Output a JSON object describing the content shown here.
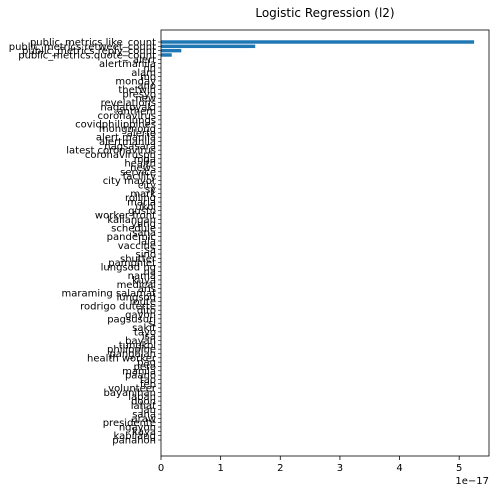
{
  "chart_data": {
    "type": "bar",
    "orientation": "horizontal",
    "title": "Logistic Regression (l2)",
    "xlabel": "",
    "ylabel": "",
    "x_scale_label": "1e−17",
    "xlim": [
      0,
      5.5
    ],
    "x_ticks": [
      0,
      1,
      2,
      3,
      4,
      5
    ],
    "x_tick_labels": [
      "0",
      "1",
      "2",
      "3",
      "4",
      "5"
    ],
    "grid": false,
    "bar_color": "#1f77b4",
    "categories": [
      "public_metrics.like_count",
      "public_metrics.retweet_count",
      "public_metrics.reply_count",
      "public_metrics.quote_count",
      "alert",
      "alertmanila",
      "nh",
      "alam",
      "mo",
      "monday",
      "ano",
      "thetwin",
      "presyo",
      "new",
      "revelations",
      "nagatoyaki",
      "anthem",
      "coronavirus",
      "lungs",
      "covidphilippines",
      "mongmong",
      "alerto",
      "alert manila",
      "alertmanila",
      "nagsasara",
      "latest coronavirus",
      "coronavirusph",
      "mga",
      "health",
      "news",
      "service",
      "facility",
      "city mayor",
      "city",
      "sy",
      "mark",
      "rolling",
      "maria",
      "ukol",
      "gusto",
      "worker front",
      "kailangan",
      "yung",
      "schedule",
      "sana",
      "pandemic",
      "lala",
      "vaccine",
      "sa",
      "sino",
      "shutter",
      "pamphlet",
      "lungsod ng",
      "na",
      "nama",
      "kuya",
      "medical",
      "aris",
      "maraming salamat",
      "lungsod",
      "route",
      "rodrigo duterte",
      "dito",
      "gayon",
      "pagsusuri",
      "si",
      "sakit",
      "tayo",
      "isa",
      "bayan",
      "tungkol",
      "philippine",
      "pangalan",
      "health worker",
      "pag",
      "pero",
      "manila",
      "paano",
      "tao",
      "feb",
      "volunteer",
      "bayanihan",
      "laban",
      "doon",
      "lahat",
      "jan",
      "sana",
      "araw",
      "presidente",
      "ngayon",
      "kaya",
      "kabilang",
      "panahon"
    ],
    "values": [
      5.25,
      1.58,
      0.34,
      0.18,
      0,
      0,
      0,
      0,
      0,
      0,
      0,
      0,
      0,
      0,
      0,
      0,
      0,
      0,
      0,
      0,
      0,
      0,
      0,
      0,
      0,
      0,
      0,
      0,
      0,
      0,
      0,
      0,
      0,
      0,
      0,
      0,
      0,
      0,
      0,
      0,
      0,
      0,
      0,
      0,
      0,
      0,
      0,
      0,
      0,
      0,
      0,
      0,
      0,
      0,
      0,
      0,
      0,
      0,
      0,
      0,
      0,
      0,
      0,
      0,
      0,
      0,
      0,
      0,
      0,
      0,
      0,
      0,
      0,
      0,
      0,
      0,
      0,
      0,
      0,
      0,
      0,
      0,
      0,
      0,
      0,
      0,
      0,
      0,
      0,
      0,
      0,
      0,
      0
    ]
  }
}
